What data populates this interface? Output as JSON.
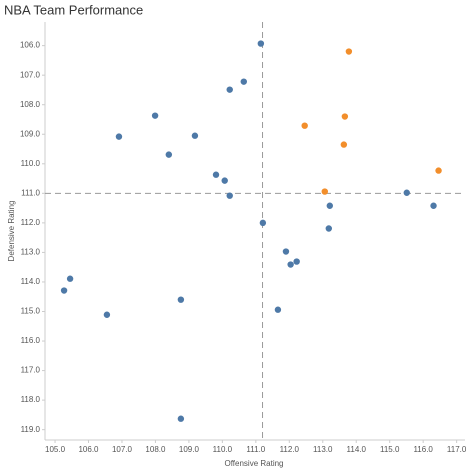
{
  "chart_data": {
    "type": "scatter",
    "title": "NBA Team Performance",
    "x_label": "Offensive Rating",
    "y_label": "Defensive Rating",
    "xlim": [
      104.7,
      117.25
    ],
    "ylim": [
      105.2,
      119.35
    ],
    "y_inverted": true,
    "xticks": [
      {
        "value": 105,
        "label": "105.0"
      },
      {
        "value": 106,
        "label": "106.0"
      },
      {
        "value": 107,
        "label": "107.0"
      },
      {
        "value": 108,
        "label": "108.0"
      },
      {
        "value": 109,
        "label": "109.0"
      },
      {
        "value": 110,
        "label": "110.0"
      },
      {
        "value": 111,
        "label": "111.0"
      },
      {
        "value": 112,
        "label": "112.0"
      },
      {
        "value": 113,
        "label": "113.0"
      },
      {
        "value": 114,
        "label": "114.0"
      },
      {
        "value": 115,
        "label": "115.0"
      },
      {
        "value": 116,
        "label": "116.0"
      },
      {
        "value": 117,
        "label": "117.0"
      }
    ],
    "yticks": [
      {
        "value": 106,
        "label": "106.0"
      },
      {
        "value": 107,
        "label": "107.0"
      },
      {
        "value": 108,
        "label": "108.0"
      },
      {
        "value": 109,
        "label": "109.0"
      },
      {
        "value": 110,
        "label": "110.0"
      },
      {
        "value": 111,
        "label": "111.0"
      },
      {
        "value": 112,
        "label": "112.0"
      },
      {
        "value": 113,
        "label": "113.0"
      },
      {
        "value": 114,
        "label": "114.0"
      },
      {
        "value": 115,
        "label": "115.0"
      },
      {
        "value": 116,
        "label": "116.0"
      },
      {
        "value": 117,
        "label": "117.0"
      },
      {
        "value": 118,
        "label": "118.0"
      },
      {
        "value": 119,
        "label": "119.0"
      }
    ],
    "reference_lines": {
      "x": 111.2,
      "y": 111.0
    },
    "series": [
      {
        "color": "#4e79a7",
        "x": [
          111.15,
          110.64,
          110.22,
          107.99,
          106.91,
          109.18,
          108.4,
          109.81,
          110.07,
          110.22,
          115.51,
          116.31,
          113.21,
          111.21,
          113.18,
          111.9,
          112.22,
          112.04,
          105.45,
          105.27,
          108.76,
          106.55,
          111.66,
          108.76
        ],
        "values": [
          105.93,
          107.22,
          107.49,
          108.37,
          109.08,
          109.05,
          109.69,
          110.37,
          110.57,
          111.08,
          110.98,
          111.42,
          111.42,
          112.0,
          112.19,
          112.97,
          113.31,
          113.41,
          113.89,
          114.29,
          114.6,
          115.11,
          114.94,
          118.63
        ]
      },
      {
        "color": "#f28e2b",
        "x": [
          113.78,
          112.46,
          113.66,
          113.63,
          116.46,
          113.06
        ],
        "values": [
          106.2,
          108.71,
          108.4,
          109.35,
          110.23,
          110.94
        ]
      }
    ]
  }
}
